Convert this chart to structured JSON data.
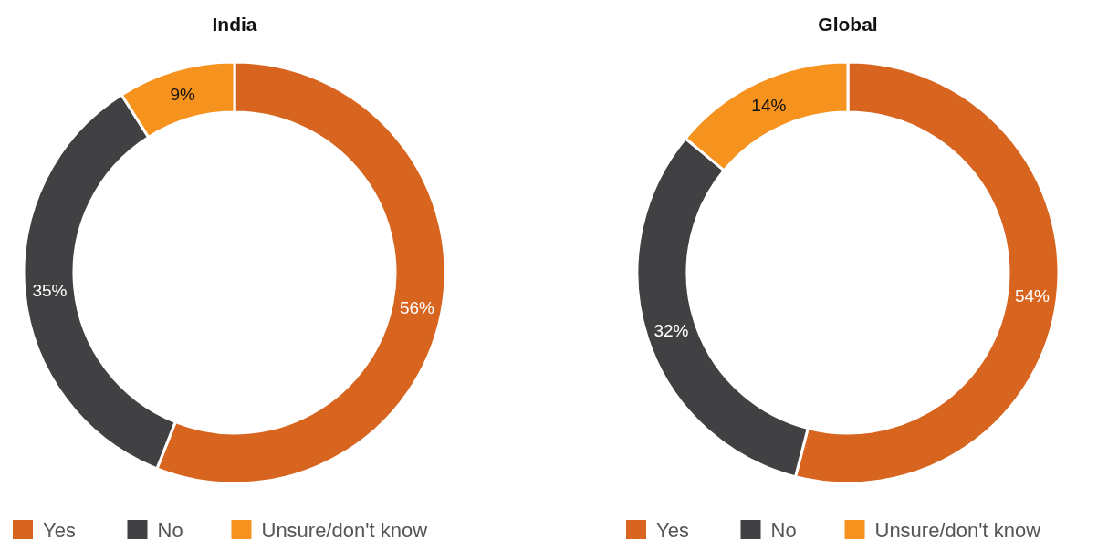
{
  "chart_data": [
    {
      "type": "donut",
      "title": "India",
      "categories": [
        "Yes",
        "No",
        "Unsure/don't know"
      ],
      "values": [
        56,
        35,
        9
      ],
      "value_labels": [
        "56%",
        "35%",
        "9%"
      ],
      "colors": [
        "#d7651f",
        "#414042",
        "#f6921e"
      ],
      "legend": "bottom"
    },
    {
      "type": "donut",
      "title": "Global",
      "categories": [
        "Yes",
        "No",
        "Unsure/don't know"
      ],
      "values": [
        54,
        32,
        14
      ],
      "value_labels": [
        "54%",
        "32%",
        "14%"
      ],
      "colors": [
        "#d7651f",
        "#414042",
        "#f6921e"
      ],
      "legend": "bottom"
    }
  ]
}
